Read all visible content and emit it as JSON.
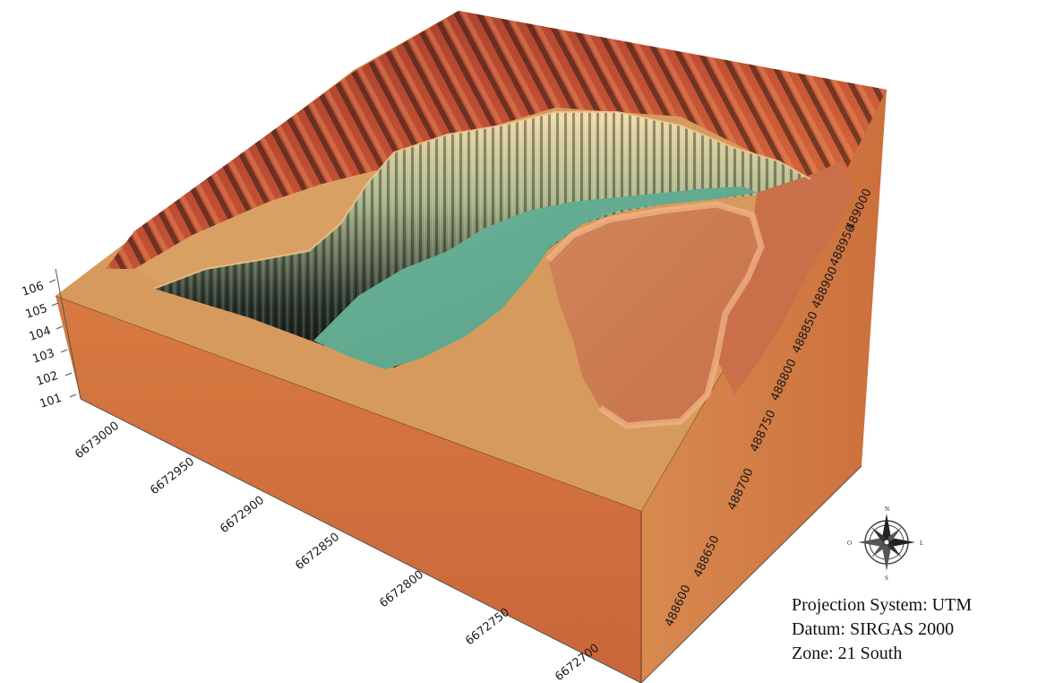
{
  "map": {
    "type": "3d-terrain-block",
    "elevation_ticks": [
      "101",
      "102",
      "103",
      "104",
      "105",
      "106"
    ],
    "northing_ticks": [
      "6673000",
      "6672950",
      "6672900",
      "6672850",
      "6672800",
      "6672750",
      "6672700"
    ],
    "easting_ticks": [
      "488600",
      "488650",
      "488700",
      "488750",
      "488800",
      "488850",
      "488900",
      "488950",
      "489000"
    ],
    "colors": {
      "plateau": "#d79a5d",
      "block_side_front": "#d2703a",
      "block_side_right": "#d4783e",
      "pit_water": "#5fa58d",
      "rim_high": "#b6442a",
      "cliff_dark": "#1e1a14",
      "lowland": "#cd7f50"
    }
  },
  "compass": {
    "north": "N",
    "south": "S",
    "west": "O",
    "east": "L"
  },
  "info": {
    "projection": "Projection System: UTM",
    "datum": "Datum: SIRGAS 2000",
    "zone": "Zone: 21 South"
  }
}
